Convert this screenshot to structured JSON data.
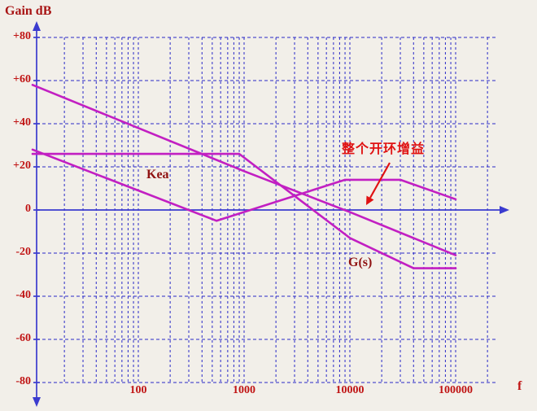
{
  "chart_data": {
    "type": "line",
    "title": "",
    "ylabel": "Gain dB",
    "xlabel": "f",
    "x_scale": "log",
    "x_range": [
      10,
      200000
    ],
    "y_range": [
      -80,
      80
    ],
    "grid": true,
    "grid_style": "dashed",
    "x_minor_grid": "log-spaced lines at 2-9 within each decade",
    "y_ticks": [
      80,
      60,
      40,
      20,
      0,
      -20,
      -40,
      -60,
      -80
    ],
    "y_tick_labels": [
      "+80",
      "+60",
      "+40",
      "+20",
      "0",
      "-20",
      "-40",
      "-60",
      "-80"
    ],
    "x_ticks": [
      100,
      1000,
      10000,
      100000
    ],
    "x_tick_labels": [
      "100",
      "1000",
      "10000",
      "100000"
    ],
    "series": [
      {
        "name": "整个开环增益",
        "meaning": "overall open-loop gain, straight line ~ -20 dB/decade",
        "points": [
          [
            10,
            58
          ],
          [
            100,
            38
          ],
          [
            1000,
            18
          ],
          [
            10000,
            -1
          ],
          [
            100000,
            -21
          ]
        ]
      },
      {
        "name": "Kea",
        "meaning": "error-amplifier gain",
        "points": [
          [
            10,
            28
          ],
          [
            550,
            -5
          ],
          [
            9000,
            14
          ],
          [
            30000,
            14
          ],
          [
            100000,
            5
          ]
        ]
      },
      {
        "name": "G(s)",
        "meaning": "power-stage transfer function",
        "points": [
          [
            10,
            26
          ],
          [
            900,
            26
          ],
          [
            10000,
            -13
          ],
          [
            40000,
            -27
          ],
          [
            100000,
            -27
          ]
        ]
      }
    ],
    "series_labels": {
      "kea": "Kea",
      "gs": "G(s)"
    },
    "annotation": {
      "text": "整个开环增益",
      "points_to": "0 dB crossover of the overall open-loop gain line near f = 10000"
    },
    "legend_position": "none"
  },
  "colors": {
    "background": "#f2efe9",
    "grid": "#2929c8",
    "axis": "#3b3bcf",
    "curve": "#c21fc2",
    "tick_text": "#c01414",
    "heading_text": "#a81414",
    "series_text": "#8f1111",
    "annotation": "#e01212"
  }
}
